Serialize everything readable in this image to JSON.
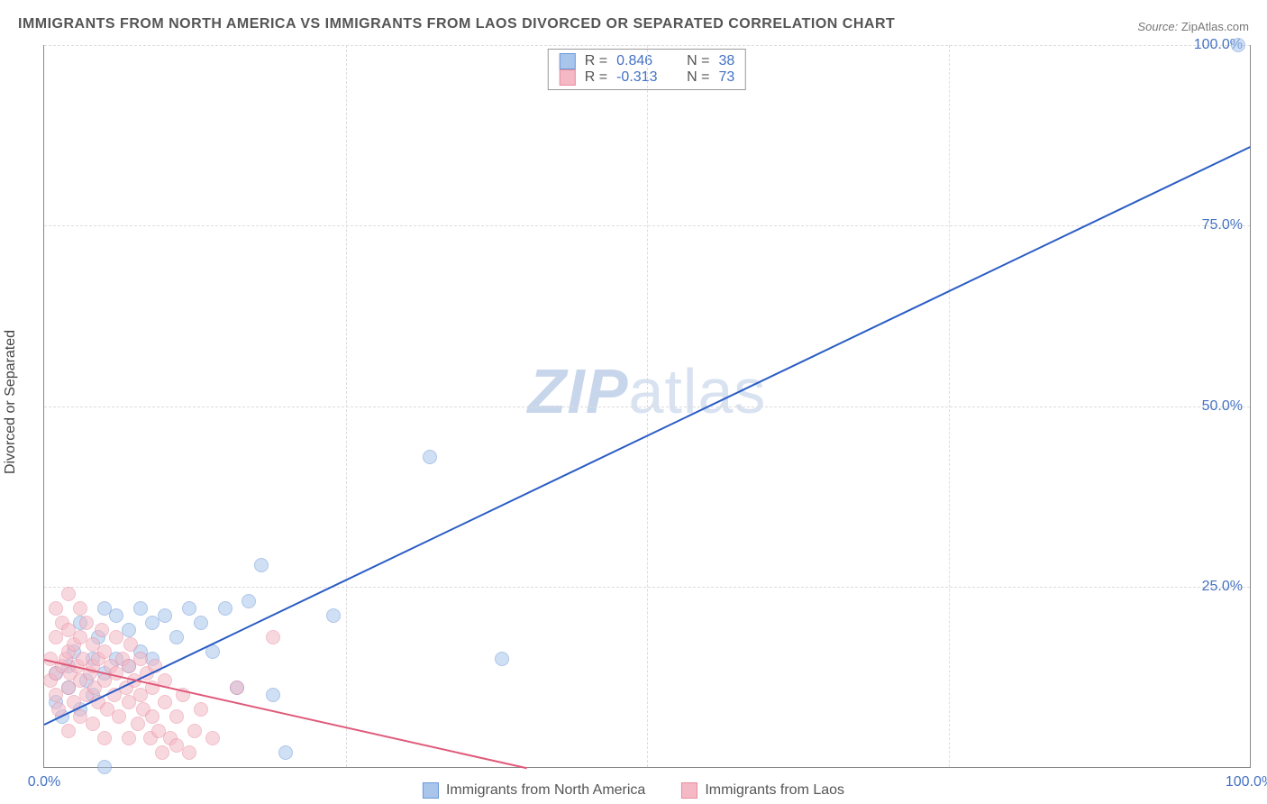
{
  "title": "IMMIGRANTS FROM NORTH AMERICA VS IMMIGRANTS FROM LAOS DIVORCED OR SEPARATED CORRELATION CHART",
  "source_label": "Source:",
  "source_value": "ZipAtlas.com",
  "ylabel": "Divorced or Separated",
  "watermark_a": "ZIP",
  "watermark_b": "atlas",
  "chart": {
    "type": "scatter",
    "xlim": [
      0,
      100
    ],
    "ylim": [
      0,
      100
    ],
    "y_ticks": [
      25,
      50,
      75,
      100
    ],
    "y_tick_labels": [
      "25.0%",
      "50.0%",
      "75.0%",
      "100.0%"
    ],
    "x_ticks_lines": [
      0,
      25,
      50,
      75,
      100
    ],
    "x_min_label": "0.0%",
    "x_max_label": "100.0%",
    "background_color": "#ffffff",
    "grid_color": "#dddddd",
    "axis_color": "#888888",
    "label_color": "#4472c4",
    "marker_radius": 8,
    "series": [
      {
        "name": "Immigrants from North America",
        "fill": "#a9c5ec",
        "fill_opacity": 0.55,
        "stroke": "#6b98d8",
        "trend_color": "#2a5cc4",
        "trend_dash_color": "#2a5cc4",
        "R": "0.846",
        "N": "38",
        "trend": {
          "x1": 0,
          "y1": 6,
          "x2": 100,
          "y2": 86
        },
        "points": [
          [
            1,
            9
          ],
          [
            1,
            13
          ],
          [
            1.5,
            7
          ],
          [
            2,
            11
          ],
          [
            2,
            14
          ],
          [
            2.5,
            16
          ],
          [
            3,
            8
          ],
          [
            3,
            20
          ],
          [
            3.5,
            12
          ],
          [
            4,
            10
          ],
          [
            4,
            15
          ],
          [
            4.5,
            18
          ],
          [
            5,
            13
          ],
          [
            5,
            22
          ],
          [
            5,
            0
          ],
          [
            6,
            15
          ],
          [
            6,
            21
          ],
          [
            7,
            14
          ],
          [
            7,
            19
          ],
          [
            8,
            16
          ],
          [
            8,
            22
          ],
          [
            9,
            15
          ],
          [
            9,
            20
          ],
          [
            10,
            21
          ],
          [
            11,
            18
          ],
          [
            12,
            22
          ],
          [
            13,
            20
          ],
          [
            14,
            16
          ],
          [
            15,
            22
          ],
          [
            16,
            11
          ],
          [
            17,
            23
          ],
          [
            18,
            28
          ],
          [
            19,
            10
          ],
          [
            20,
            2
          ],
          [
            24,
            21
          ],
          [
            32,
            43
          ],
          [
            38,
            15
          ],
          [
            99,
            100
          ]
        ]
      },
      {
        "name": "Immigrants from Laos",
        "fill": "#f4b9c5",
        "fill_opacity": 0.55,
        "stroke": "#e98ba0",
        "trend_color": "#e05a7a",
        "trend_dash_color": "#edb3c0",
        "R": "-0.313",
        "N": "73",
        "trend": {
          "x1": 0,
          "y1": 15,
          "x2": 40,
          "y2": 0
        },
        "points": [
          [
            0.5,
            12
          ],
          [
            0.5,
            15
          ],
          [
            1,
            10
          ],
          [
            1,
            13
          ],
          [
            1,
            18
          ],
          [
            1,
            22
          ],
          [
            1.2,
            8
          ],
          [
            1.5,
            14
          ],
          [
            1.5,
            20
          ],
          [
            1.8,
            15
          ],
          [
            2,
            5
          ],
          [
            2,
            11
          ],
          [
            2,
            16
          ],
          [
            2,
            19
          ],
          [
            2,
            24
          ],
          [
            2.2,
            13
          ],
          [
            2.5,
            9
          ],
          [
            2.5,
            17
          ],
          [
            2.8,
            14
          ],
          [
            3,
            7
          ],
          [
            3,
            12
          ],
          [
            3,
            18
          ],
          [
            3,
            22
          ],
          [
            3.2,
            15
          ],
          [
            3.5,
            10
          ],
          [
            3.5,
            20
          ],
          [
            3.8,
            13
          ],
          [
            4,
            6
          ],
          [
            4,
            14
          ],
          [
            4,
            17
          ],
          [
            4.2,
            11
          ],
          [
            4.5,
            9
          ],
          [
            4.5,
            15
          ],
          [
            4.8,
            19
          ],
          [
            5,
            4
          ],
          [
            5,
            12
          ],
          [
            5,
            16
          ],
          [
            5.2,
            8
          ],
          [
            5.5,
            14
          ],
          [
            5.8,
            10
          ],
          [
            6,
            13
          ],
          [
            6,
            18
          ],
          [
            6.2,
            7
          ],
          [
            6.5,
            15
          ],
          [
            6.8,
            11
          ],
          [
            7,
            4
          ],
          [
            7,
            9
          ],
          [
            7,
            14
          ],
          [
            7.2,
            17
          ],
          [
            7.5,
            12
          ],
          [
            7.8,
            6
          ],
          [
            8,
            10
          ],
          [
            8,
            15
          ],
          [
            8.2,
            8
          ],
          [
            8.5,
            13
          ],
          [
            8.8,
            4
          ],
          [
            9,
            11
          ],
          [
            9,
            7
          ],
          [
            9.2,
            14
          ],
          [
            9.5,
            5
          ],
          [
            9.8,
            2
          ],
          [
            10,
            9
          ],
          [
            10,
            12
          ],
          [
            10.5,
            4
          ],
          [
            11,
            7
          ],
          [
            11,
            3
          ],
          [
            11.5,
            10
          ],
          [
            12,
            2
          ],
          [
            12.5,
            5
          ],
          [
            13,
            8
          ],
          [
            14,
            4
          ],
          [
            16,
            11
          ],
          [
            19,
            18
          ]
        ]
      }
    ]
  },
  "stats_box_labels": {
    "R_prefix": "R  =",
    "N_prefix": "N  ="
  },
  "bottom_legend": [
    {
      "label": "Immigrants from North America",
      "fill": "#a9c5ec",
      "stroke": "#6b98d8"
    },
    {
      "label": "Immigrants from Laos",
      "fill": "#f4b9c5",
      "stroke": "#e98ba0"
    }
  ]
}
